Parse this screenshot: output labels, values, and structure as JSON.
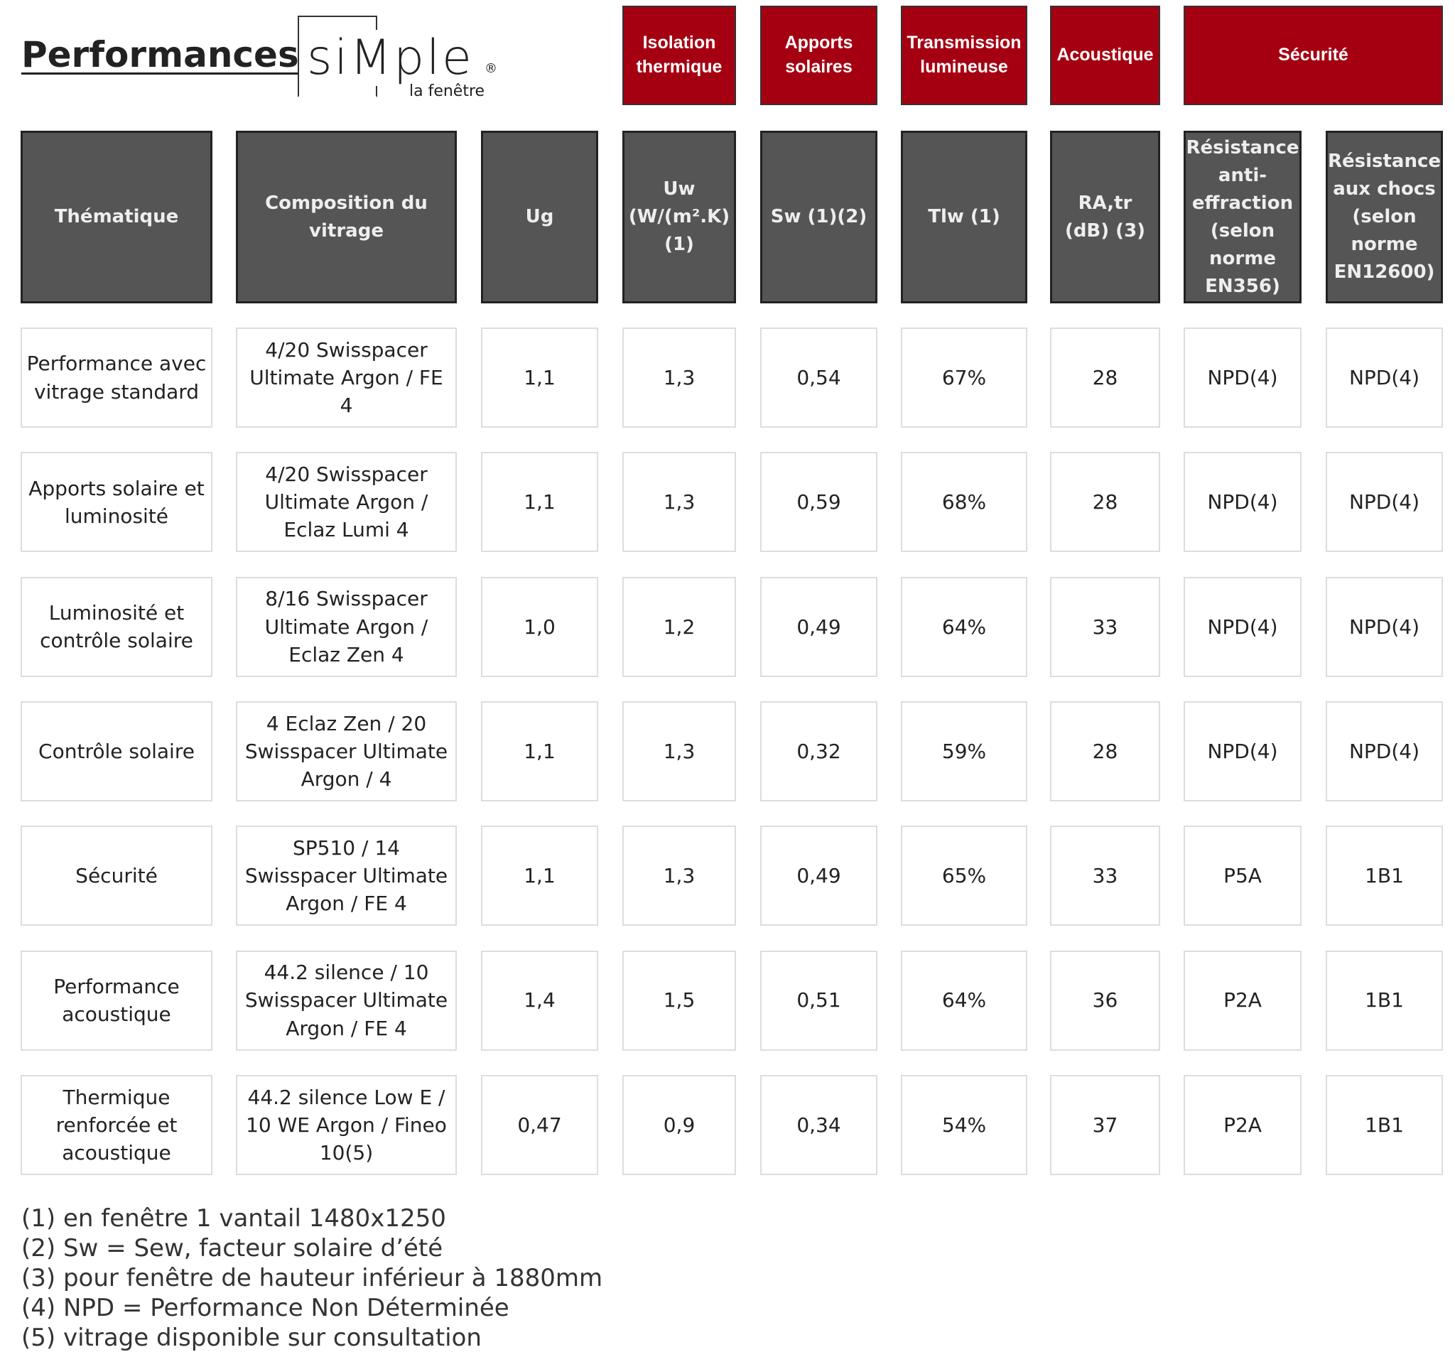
{
  "header": {
    "title": "Performances",
    "logo": {
      "brand": "siMple",
      "mark": "®",
      "tagline": "la fenêtre"
    }
  },
  "table": {
    "groups": [
      {
        "label": "Isolation thermique",
        "col": 3
      },
      {
        "label": "Apports solaires",
        "col": 4
      },
      {
        "label": "Transmission lumineuse",
        "col": 5
      },
      {
        "label": "Acoustique",
        "col": 6
      },
      {
        "label": "Sécurité",
        "col": 7,
        "span": 2
      }
    ],
    "columns": [
      "Thématique",
      "Composition du vitrage",
      "Ug",
      "Uw (W/(m².K) (1)",
      "Sw (1)(2)",
      "Tlw (1)",
      "RA,tr (dB) (3)",
      "Résistance anti-effraction (selon norme EN356)",
      "Résistance aux chocs (selon norme EN12600)"
    ],
    "rows": [
      [
        "Performance avec vitrage standard",
        "4/20 Swisspacer Ultimate Argon / FE 4",
        "1,1",
        "1,3",
        "0,54",
        "67%",
        "28",
        "NPD(4)",
        "NPD(4)"
      ],
      [
        "Apports solaire et luminosité",
        "4/20 Swisspacer Ultimate Argon / Eclaz Lumi 4",
        "1,1",
        "1,3",
        "0,59",
        "68%",
        "28",
        "NPD(4)",
        "NPD(4)"
      ],
      [
        "Luminosité et contrôle solaire",
        "8/16 Swisspacer Ultimate Argon / Eclaz Zen 4",
        "1,0",
        "1,2",
        "0,49",
        "64%",
        "33",
        "NPD(4)",
        "NPD(4)"
      ],
      [
        "Contrôle solaire",
        "4 Eclaz Zen / 20 Swisspacer Ultimate Argon / 4",
        "1,1",
        "1,3",
        "0,32",
        "59%",
        "28",
        "NPD(4)",
        "NPD(4)"
      ],
      [
        "Sécurité",
        "SP510 / 14 Swisspacer Ultimate Argon / FE 4",
        "1,1",
        "1,3",
        "0,49",
        "65%",
        "33",
        "P5A",
        "1B1"
      ],
      [
        "Performance acoustique",
        "44.2 silence / 10 Swisspacer Ultimate Argon / FE 4",
        "1,4",
        "1,5",
        "0,51",
        "64%",
        "36",
        "P2A",
        "1B1"
      ],
      [
        "Thermique renforcée et acoustique",
        "44.2 silence Low E / 10 WE Argon / Fineo 10(5)",
        "0,47",
        "0,9",
        "0,34",
        "54%",
        "37",
        "P2A",
        "1B1"
      ]
    ]
  },
  "footnotes": [
    "(1) en fenêtre 1 vantail 1480x1250",
    "(2) Sw = Sew, facteur solaire d’été",
    "(3) pour fenêtre de hauteur inférieur à 1880mm",
    "(4) NPD = Performance Non Déterminée",
    "(5) vitrage disponible sur consultation"
  ]
}
